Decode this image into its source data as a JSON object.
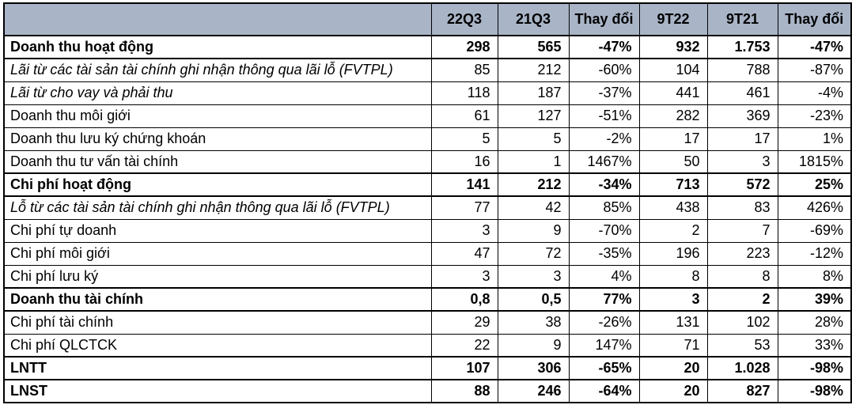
{
  "table": {
    "header_bg": "#a9b5c7",
    "border_color": "#000000",
    "columns": [
      "",
      "22Q3",
      "21Q3",
      "Thay đổi",
      "9T22",
      "9T21",
      "Thay đổi"
    ],
    "rows": [
      {
        "label": "Doanh thu hoạt động",
        "style": "bold",
        "values": [
          "298",
          "565",
          "-47%",
          "932",
          "1.753",
          "-47%"
        ]
      },
      {
        "label": "Lãi từ các tài sản tài chính ghi nhận thông qua lãi lỗ (FVTPL)",
        "style": "italic",
        "values": [
          "85",
          "212",
          "-60%",
          "104",
          "788",
          "-87%"
        ]
      },
      {
        "label": "Lãi từ cho vay và phải thu",
        "style": "italic",
        "values": [
          "118",
          "187",
          "-37%",
          "441",
          "461",
          "-4%"
        ]
      },
      {
        "label": "Doanh thu môi giới",
        "style": "normal",
        "values": [
          "61",
          "127",
          "-51%",
          "282",
          "369",
          "-23%"
        ]
      },
      {
        "label": "Doanh thu lưu ký chứng khoán",
        "style": "normal",
        "values": [
          "5",
          "5",
          "-2%",
          "17",
          "17",
          "1%"
        ]
      },
      {
        "label": "Doanh thu tư vấn tài chính",
        "style": "normal",
        "values": [
          "16",
          "1",
          "1467%",
          "50",
          "3",
          "1815%"
        ]
      },
      {
        "label": "Chi phí hoạt động",
        "style": "bold",
        "values": [
          "141",
          "212",
          "-34%",
          "713",
          "572",
          "25%"
        ]
      },
      {
        "label": "Lỗ từ các tài sản tài chính ghi nhận thông qua lãi lỗ (FVTPL)",
        "style": "italic",
        "values": [
          "77",
          "42",
          "85%",
          "438",
          "83",
          "426%"
        ]
      },
      {
        "label": "Chi phí tự doanh",
        "style": "normal",
        "values": [
          "3",
          "9",
          "-70%",
          "2",
          "7",
          "-69%"
        ]
      },
      {
        "label": "Chi phí môi giới",
        "style": "normal",
        "values": [
          "47",
          "72",
          "-35%",
          "196",
          "223",
          "-12%"
        ]
      },
      {
        "label": "Chi phí lưu ký",
        "style": "normal",
        "values": [
          "3",
          "3",
          "4%",
          "8",
          "8",
          "8%"
        ]
      },
      {
        "label": "Doanh thu tài chính",
        "style": "bold",
        "values": [
          "0,8",
          "0,5",
          "77%",
          "3",
          "2",
          "39%"
        ]
      },
      {
        "label": "Chi phí tài chính",
        "style": "normal",
        "values": [
          "29",
          "38",
          "-26%",
          "131",
          "102",
          "28%"
        ]
      },
      {
        "label": "Chi phí QLCTCK",
        "style": "normal",
        "values": [
          "22",
          "9",
          "147%",
          "71",
          "53",
          "33%"
        ]
      },
      {
        "label": "LNTT",
        "style": "bold",
        "values": [
          "107",
          "306",
          "-65%",
          "20",
          "1.028",
          "-98%"
        ]
      },
      {
        "label": "LNST",
        "style": "bold",
        "values": [
          "88",
          "246",
          "-64%",
          "20",
          "827",
          "-98%"
        ]
      }
    ]
  },
  "chart_data": {
    "type": "table",
    "title": "",
    "columns": [
      "",
      "22Q3",
      "21Q3",
      "Thay đổi",
      "9T22",
      "9T21",
      "Thay đổi"
    ],
    "rows": [
      [
        "Doanh thu hoạt động",
        "298",
        "565",
        "-47%",
        "932",
        "1.753",
        "-47%"
      ],
      [
        "Lãi từ các tài sản tài chính ghi nhận thông qua lãi lỗ (FVTPL)",
        "85",
        "212",
        "-60%",
        "104",
        "788",
        "-87%"
      ],
      [
        "Lãi từ cho vay và phải thu",
        "118",
        "187",
        "-37%",
        "441",
        "461",
        "-4%"
      ],
      [
        "Doanh thu môi giới",
        "61",
        "127",
        "-51%",
        "282",
        "369",
        "-23%"
      ],
      [
        "Doanh thu lưu ký chứng khoán",
        "5",
        "5",
        "-2%",
        "17",
        "17",
        "1%"
      ],
      [
        "Doanh thu tư vấn tài chính",
        "16",
        "1",
        "1467%",
        "50",
        "3",
        "1815%"
      ],
      [
        "Chi phí hoạt động",
        "141",
        "212",
        "-34%",
        "713",
        "572",
        "25%"
      ],
      [
        "Lỗ từ các tài sản tài chính ghi nhận thông qua lãi lỗ (FVTPL)",
        "77",
        "42",
        "85%",
        "438",
        "83",
        "426%"
      ],
      [
        "Chi phí tự doanh",
        "3",
        "9",
        "-70%",
        "2",
        "7",
        "-69%"
      ],
      [
        "Chi phí môi giới",
        "47",
        "72",
        "-35%",
        "196",
        "223",
        "-12%"
      ],
      [
        "Chi phí lưu ký",
        "3",
        "3",
        "4%",
        "8",
        "8",
        "8%"
      ],
      [
        "Doanh thu tài chính",
        "0,8",
        "0,5",
        "77%",
        "3",
        "2",
        "39%"
      ],
      [
        "Chi phí tài chính",
        "29",
        "38",
        "-26%",
        "131",
        "102",
        "28%"
      ],
      [
        "Chi phí QLCTCK",
        "22",
        "9",
        "147%",
        "71",
        "53",
        "33%"
      ],
      [
        "LNTT",
        "107",
        "306",
        "-65%",
        "20",
        "1.028",
        "-98%"
      ],
      [
        "LNST",
        "88",
        "246",
        "-64%",
        "20",
        "827",
        "-98%"
      ]
    ]
  }
}
